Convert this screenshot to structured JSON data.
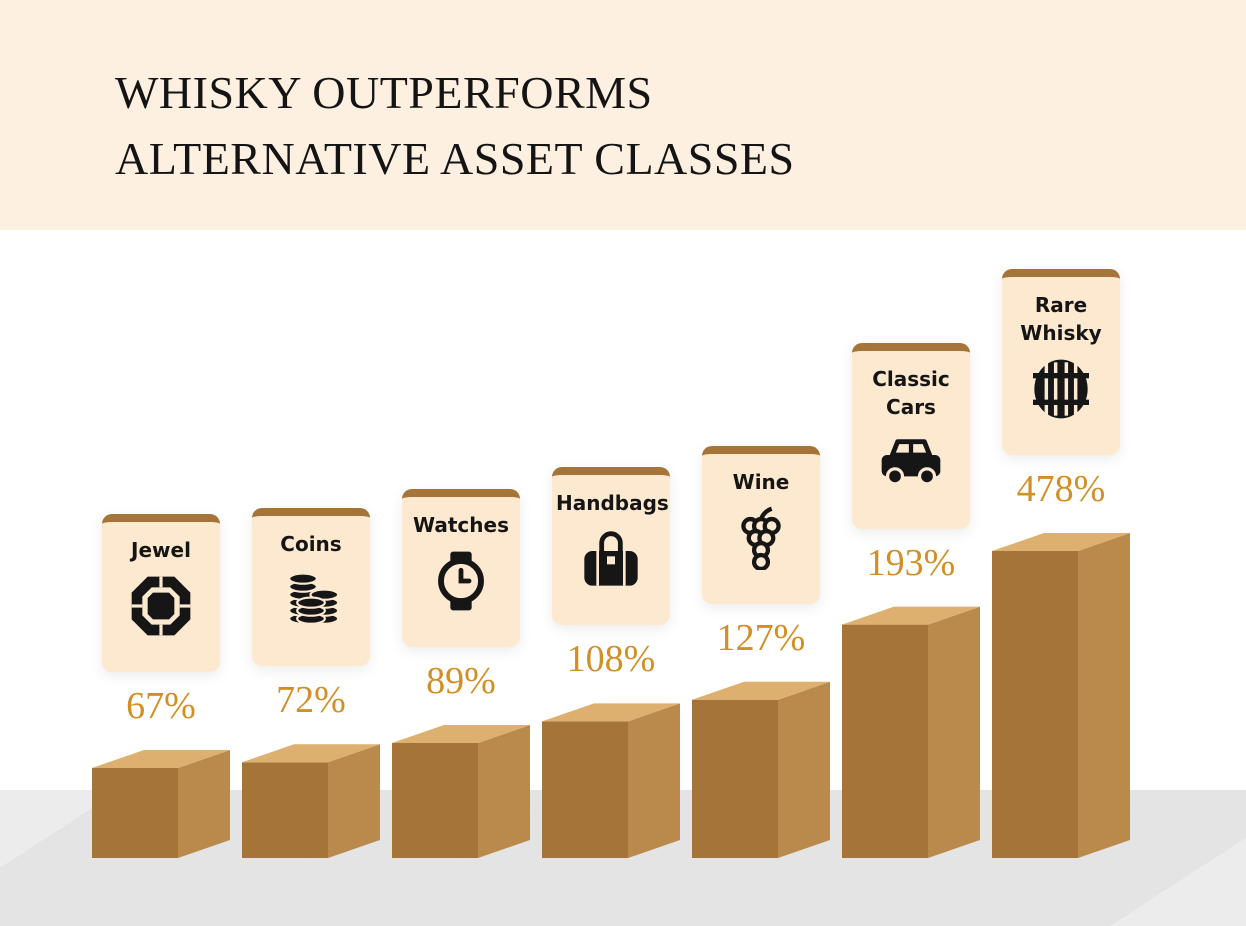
{
  "title": {
    "line1": "WHISKY OUTPERFORMS",
    "line2": "ALTERNATIVE ASSET CLASSES"
  },
  "colors": {
    "banner": "#fdf0e1",
    "card": "#fde8d0",
    "card_top": "#a47438",
    "bar_front": "#a47438",
    "bar_side": "#b98a4b",
    "bar_top": "#ddb070",
    "percent_text": "#d18f26",
    "floor": "#ececec"
  },
  "chart_data": {
    "type": "bar",
    "title": "WHISKY OUTPERFORMS ALTERNATIVE ASSET CLASSES",
    "categories": [
      "Jewel",
      "Coins",
      "Watches",
      "Handbags",
      "Wine",
      "Classic Cars",
      "Rare Whisky"
    ],
    "values": [
      67,
      72,
      89,
      108,
      127,
      193,
      478
    ],
    "value_labels": [
      "67%",
      "72%",
      "89%",
      "108%",
      "127%",
      "193%",
      "478%"
    ],
    "icons": [
      "jewel-icon",
      "coins-icon",
      "watch-icon",
      "handbag-icon",
      "grapes-icon",
      "car-icon",
      "barrel-icon"
    ],
    "ylim": [
      0,
      478
    ],
    "grid": false,
    "legend": "none"
  }
}
